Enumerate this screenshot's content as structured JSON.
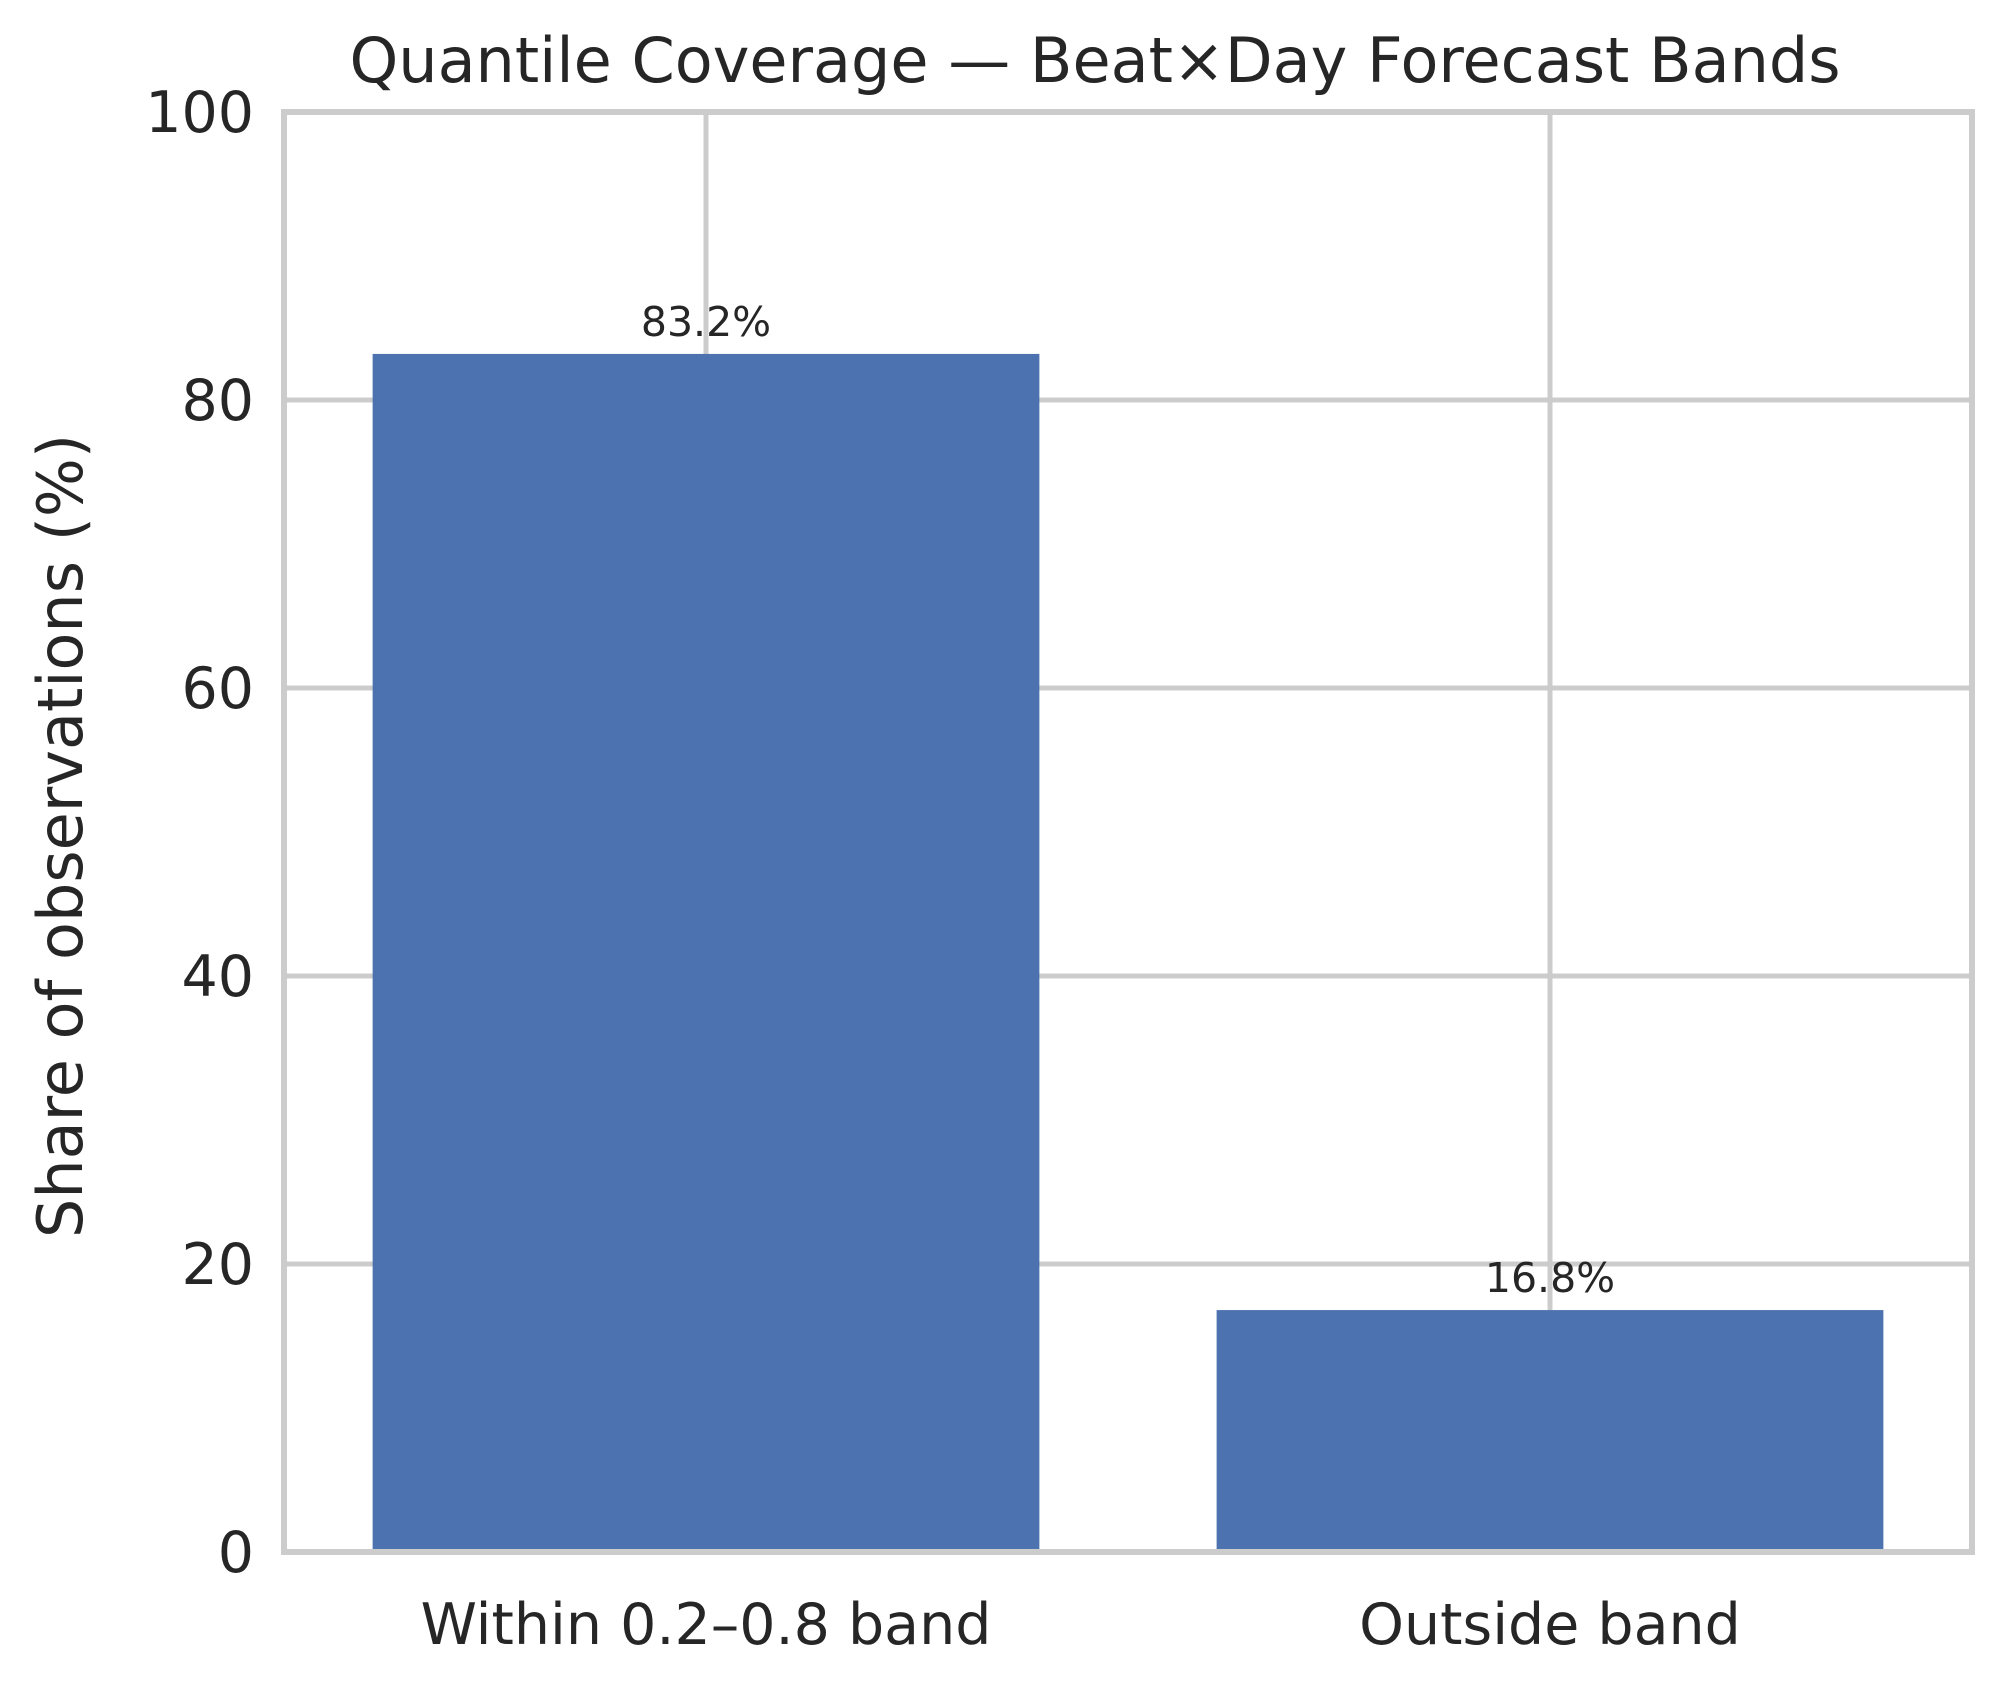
{
  "chart_data": {
    "type": "bar",
    "title": "Quantile Coverage — Beat×Day Forecast Bands",
    "xlabel": "",
    "ylabel": "Share of observations (%)",
    "categories": [
      "Within 0.2–0.8 band",
      "Outside band"
    ],
    "values": [
      83.2,
      16.8
    ],
    "data_labels": [
      "83.2%",
      "16.8%"
    ],
    "ylim": [
      0,
      100
    ],
    "yticks": [
      0,
      20,
      40,
      60,
      80,
      100
    ],
    "grid": true,
    "legend": "none",
    "colors": {
      "bar": "#4c72b0",
      "grid": "#cccccc",
      "frame": "#cccccc",
      "background": "#ffffff",
      "text": "#262626"
    }
  }
}
